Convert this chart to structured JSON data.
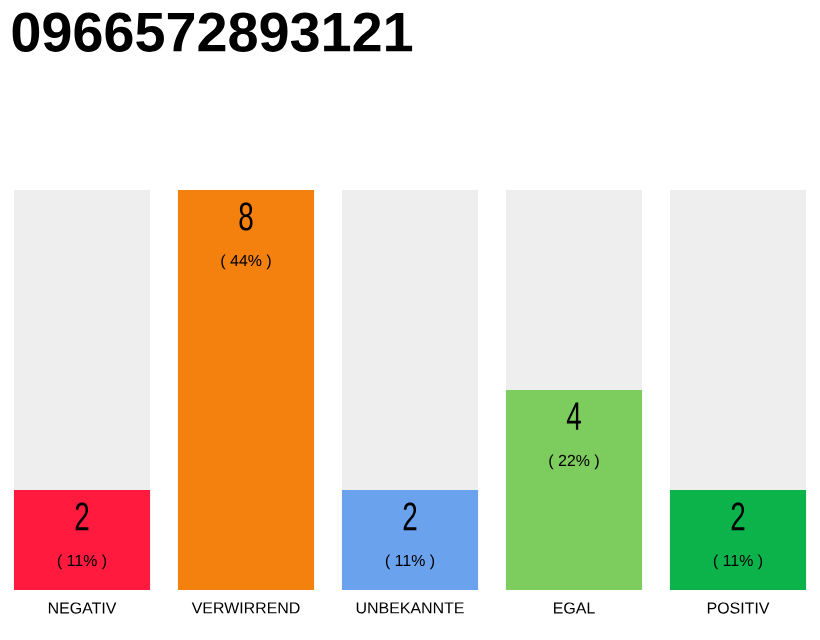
{
  "chart_data": {
    "type": "bar",
    "title": "0966572893121",
    "categories": [
      "NEGATIV",
      "VERWIRREND",
      "UNBEKANNTE",
      "EGAL",
      "POSITIV"
    ],
    "values": [
      2,
      8,
      2,
      4,
      2
    ],
    "colors": [
      "#ff1a3e",
      "#f4800e",
      "#6aa2ee",
      "#7dcc5e",
      "#0bb34a"
    ],
    "annotations": [
      "( 11% )",
      "( 44% )",
      "( 11% )",
      "( 22% )",
      "( 11% )"
    ],
    "data_labels": true,
    "tick_labels": "x"
  }
}
